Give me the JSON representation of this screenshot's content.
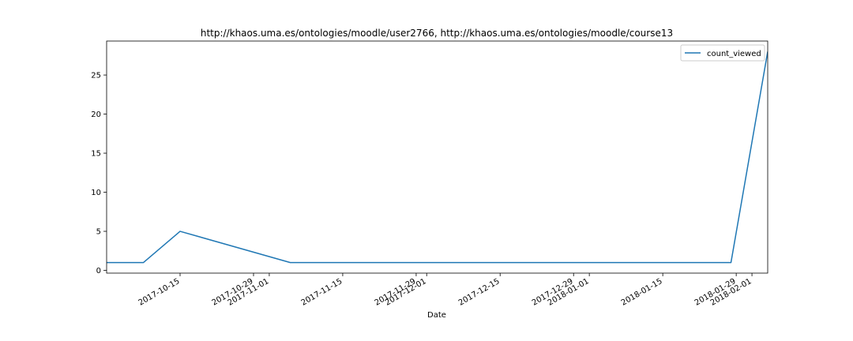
{
  "chart_data": {
    "type": "line",
    "title": "http://khaos.uma.es/ontologies/moodle/user2766, http://khaos.uma.es/ontologies/moodle/course13",
    "xlabel": "Date",
    "ylabel": "",
    "grid": false,
    "legend_position": "top-right",
    "xlim": [
      "2017-10-01",
      "2018-02-04"
    ],
    "ylim": [
      -0.35,
      29.35
    ],
    "x_ticks": [
      "2017-10-15",
      "2017-10-29",
      "2017-11-01",
      "2017-11-15",
      "2017-11-29",
      "2017-12-01",
      "2017-12-15",
      "2017-12-29",
      "2018-01-01",
      "2018-01-15",
      "2018-01-29",
      "2018-02-01"
    ],
    "y_ticks": [
      0,
      5,
      10,
      15,
      20,
      25
    ],
    "series": [
      {
        "name": "count_viewed",
        "color": "#1f77b4",
        "x": [
          "2017-10-01",
          "2017-10-08",
          "2017-10-15",
          "2017-11-05",
          "2018-01-28",
          "2018-02-04"
        ],
        "y": [
          1,
          1,
          5,
          1,
          1,
          28
        ]
      }
    ]
  }
}
